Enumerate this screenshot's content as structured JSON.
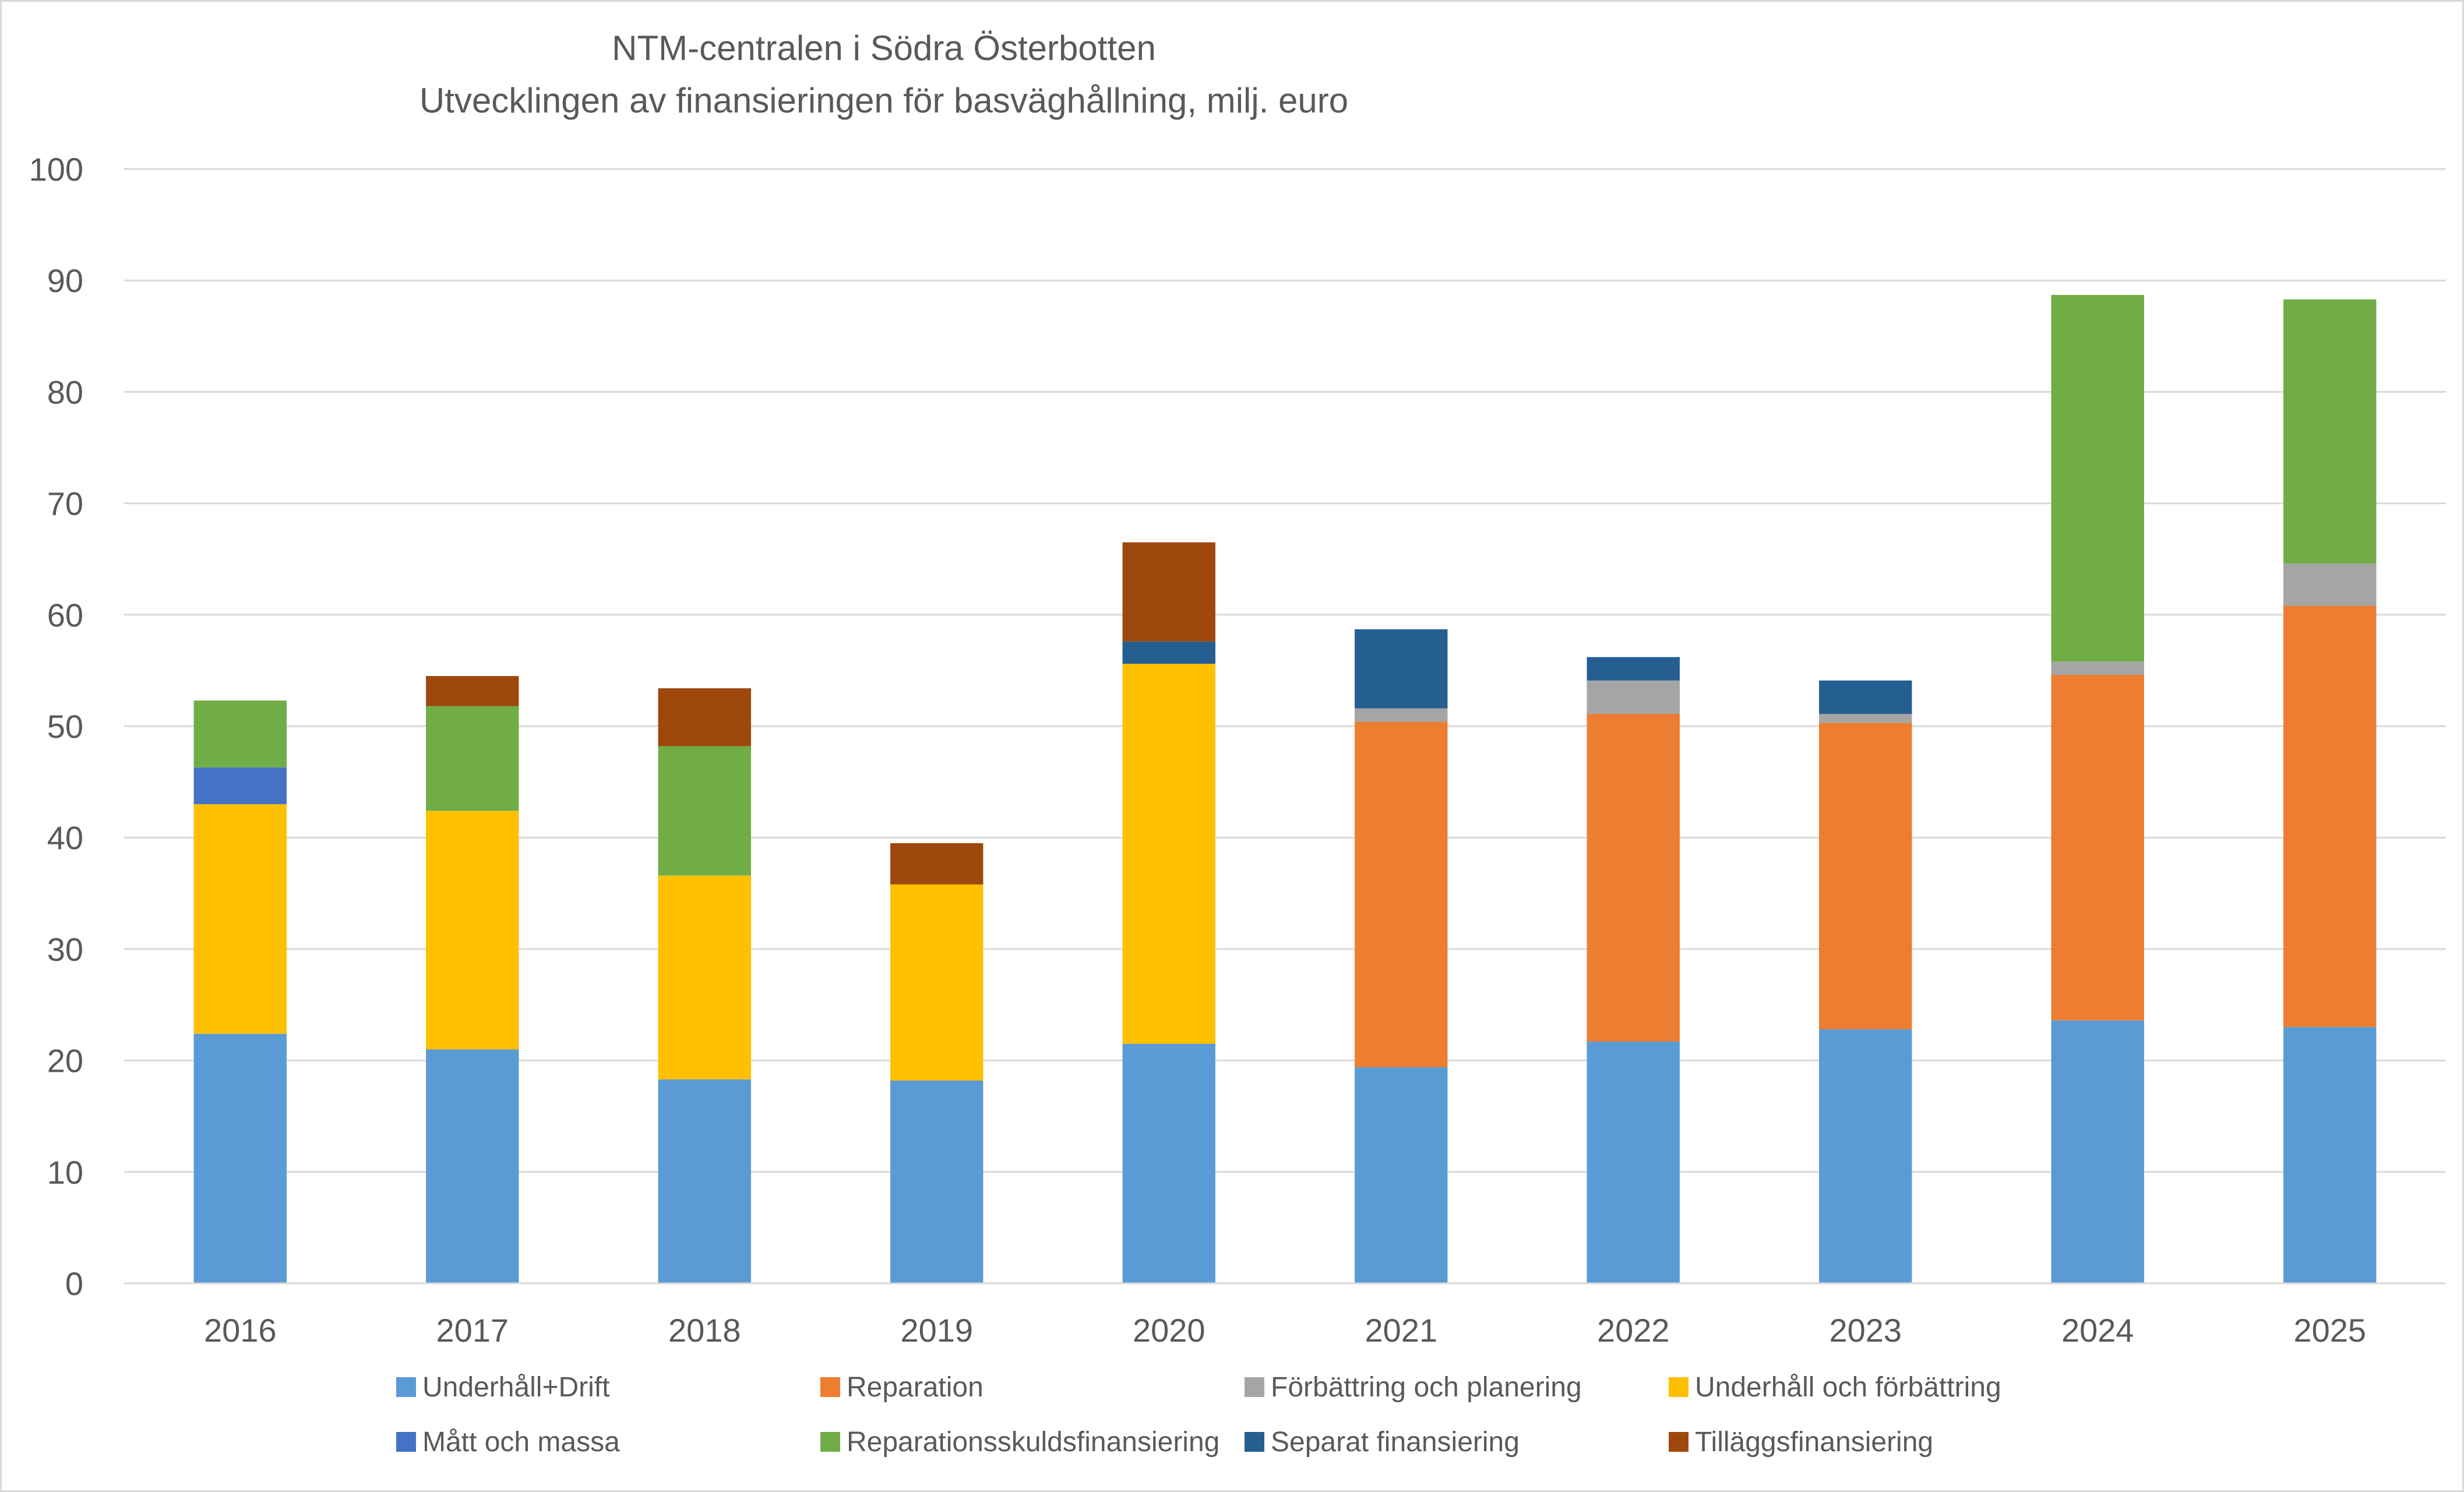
{
  "chart_data": {
    "type": "bar",
    "stacked": true,
    "title": "NTM-centralen i Södra Österbotten",
    "subtitle": "Utvecklingen av finansieringen för basväghållning, milj. euro",
    "xlabel": "",
    "ylabel": "",
    "ylim": [
      0,
      100
    ],
    "yticks": [
      "0",
      "10",
      "20",
      "30",
      "40",
      "50",
      "60",
      "70",
      "80",
      "90",
      "100"
    ],
    "grid": true,
    "legend_position": "bottom",
    "categories": [
      "2016",
      "2017",
      "2018",
      "2019",
      "2020",
      "2021",
      "2022",
      "2023",
      "2024",
      "2025"
    ],
    "series": [
      {
        "name": "Underhåll+Drift",
        "color": "#5b9bd5",
        "values": [
          22.4,
          21.0,
          18.3,
          18.2,
          21.5,
          19.4,
          21.7,
          22.8,
          23.6,
          23.0
        ]
      },
      {
        "name": "Reparation",
        "color": "#ed7d31",
        "values": [
          0,
          0,
          0,
          0,
          0,
          31.0,
          29.4,
          27.5,
          31.0,
          37.8
        ]
      },
      {
        "name": "Förbättring och planering",
        "color": "#a5a5a5",
        "values": [
          0,
          0,
          0,
          0,
          0,
          1.2,
          3.0,
          0.8,
          1.2,
          3.8
        ]
      },
      {
        "name": "Underhåll och förbättring",
        "color": "#ffc000",
        "values": [
          20.6,
          21.4,
          18.3,
          17.6,
          34.1,
          0,
          0,
          0,
          0,
          0
        ]
      },
      {
        "name": "Mått och massa",
        "color": "#4472c4",
        "values": [
          3.3,
          0,
          0,
          0,
          0,
          0,
          0,
          0,
          0,
          0
        ]
      },
      {
        "name": "Reparationsskuldsfinansiering",
        "color": "#70ad47",
        "values": [
          6.0,
          9.4,
          11.6,
          0,
          0,
          0,
          0,
          0,
          32.9,
          23.7
        ]
      },
      {
        "name": "Separat finansiering",
        "color": "#255e91",
        "values": [
          0,
          0,
          0,
          0,
          2.0,
          7.1,
          2.1,
          3.0,
          0,
          0
        ]
      },
      {
        "name": "Tilläggsfinansiering",
        "color": "#9e480e",
        "values": [
          0,
          2.7,
          5.2,
          3.7,
          8.9,
          0,
          0,
          0,
          0,
          0
        ]
      }
    ]
  }
}
